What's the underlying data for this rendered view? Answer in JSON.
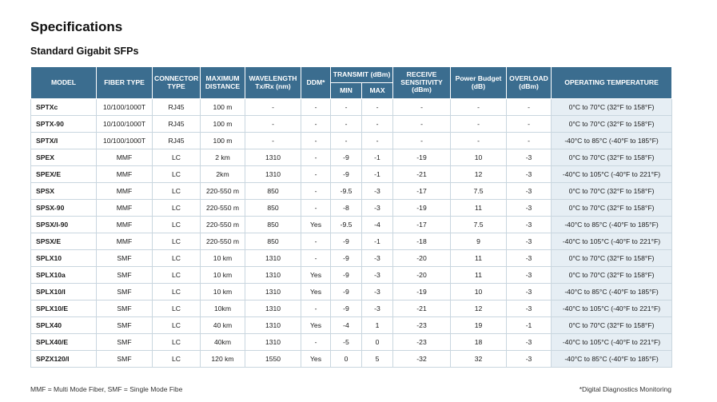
{
  "title": "Specifications",
  "subtitle": "Standard Gigabit SFPs",
  "headers": {
    "model": "MODEL",
    "fiber_type": "FIBER TYPE",
    "connector_type": "CONNECTOR TYPE",
    "max_distance": "MAXIMUM DISTANCE",
    "wavelength": "WAVELENGTH Tx/Rx (nm)",
    "ddm": "DDM*",
    "transmit": "TRANSMIT (dBm)",
    "transmit_min": "MIN",
    "transmit_max": "MAX",
    "receive": "RECEIVE SENSITIVITY (dBm)",
    "power_budget": "Power Budget (dB)",
    "overload": "OVERLOAD (dBm)",
    "temperature": "OPERATING TEMPERATURE"
  },
  "rows": [
    [
      "SPTXc",
      "10/100/1000T",
      "RJ45",
      "100 m",
      "-",
      "-",
      "-",
      "-",
      "-",
      "-",
      "-",
      "0°C to 70°C (32°F to 158°F)"
    ],
    [
      "SPTX-90",
      "10/100/1000T",
      "RJ45",
      "100 m",
      "-",
      "-",
      "-",
      "-",
      "-",
      "-",
      "-",
      "0°C to 70°C (32°F to 158°F)"
    ],
    [
      "SPTX/I",
      "10/100/1000T",
      "RJ45",
      "100 m",
      "-",
      "-",
      "-",
      "-",
      "-",
      "-",
      "-",
      "-40°C to 85°C (-40°F to 185°F)"
    ],
    [
      "SPEX",
      "MMF",
      "LC",
      "2 km",
      "1310",
      "-",
      "-9",
      "-1",
      "-19",
      "10",
      "-3",
      "0°C to 70°C (32°F to 158°F)"
    ],
    [
      "SPEX/E",
      "MMF",
      "LC",
      "2km",
      "1310",
      "-",
      "-9",
      "-1",
      "-21",
      "12",
      "-3",
      "-40°C to 105°C (-40°F to 221°F)"
    ],
    [
      "SPSX",
      "MMF",
      "LC",
      "220-550 m",
      "850",
      "-",
      "-9.5",
      "-3",
      "-17",
      "7.5",
      "-3",
      "0°C to 70°C (32°F to 158°F)"
    ],
    [
      "SPSX-90",
      "MMF",
      "LC",
      "220-550 m",
      "850",
      "-",
      "-8",
      "-3",
      "-19",
      "11",
      "-3",
      "0°C to 70°C (32°F to 158°F)"
    ],
    [
      "SPSX/I-90",
      "MMF",
      "LC",
      "220-550 m",
      "850",
      "Yes",
      "-9.5",
      "-4",
      "-17",
      "7.5",
      "-3",
      "-40°C to 85°C (-40°F to 185°F)"
    ],
    [
      "SPSX/E",
      "MMF",
      "LC",
      "220-550 m",
      "850",
      "-",
      "-9",
      "-1",
      "-18",
      "9",
      "-3",
      "-40°C to 105°C (-40°F to 221°F)"
    ],
    [
      "SPLX10",
      "SMF",
      "LC",
      "10 km",
      "1310",
      "-",
      "-9",
      "-3",
      "-20",
      "11",
      "-3",
      "0°C to 70°C (32°F to 158°F)"
    ],
    [
      "SPLX10a",
      "SMF",
      "LC",
      "10 km",
      "1310",
      "Yes",
      "-9",
      "-3",
      "-20",
      "11",
      "-3",
      "0°C to 70°C (32°F to 158°F)"
    ],
    [
      "SPLX10/I",
      "SMF",
      "LC",
      "10 km",
      "1310",
      "Yes",
      "-9",
      "-3",
      "-19",
      "10",
      "-3",
      "-40°C to 85°C (-40°F to 185°F)"
    ],
    [
      "SPLX10/E",
      "SMF",
      "LC",
      "10km",
      "1310",
      "-",
      "-9",
      "-3",
      "-21",
      "12",
      "-3",
      "-40°C to 105°C (-40°F to 221°F)"
    ],
    [
      "SPLX40",
      "SMF",
      "LC",
      "40 km",
      "1310",
      "Yes",
      "-4",
      "1",
      "-23",
      "19",
      "-1",
      "0°C to 70°C (32°F to 158°F)"
    ],
    [
      "SPLX40/E",
      "SMF",
      "LC",
      "40km",
      "1310",
      "-",
      "-5",
      "0",
      "-23",
      "18",
      "-3",
      "-40°C to 105°C (-40°F to 221°F)"
    ],
    [
      "SPZX120/I",
      "SMF",
      "LC",
      "120 km",
      "1550",
      "Yes",
      "0",
      "5",
      "-32",
      "32",
      "-3",
      "-40°C to 85°C (-40°F to 185°F)"
    ]
  ],
  "footer_left": "MMF = Multi Mode Fiber, SMF = Single Mode Fibe",
  "footer_right": "*Digital Diagnostics Monitoring"
}
